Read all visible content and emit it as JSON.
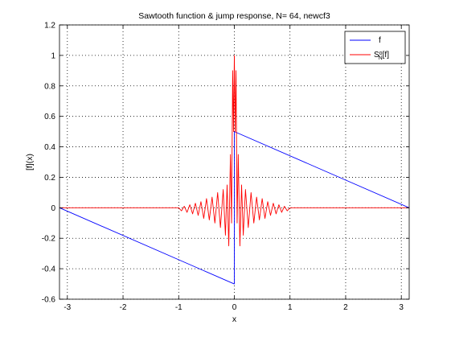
{
  "chart_data": {
    "type": "line",
    "title": "Sawtooth function & jump response, N= 64, newcf3",
    "xlabel": "x",
    "ylabel": "[f](x)",
    "xlim": [
      -3.14159,
      3.14159
    ],
    "ylim": [
      -0.6,
      1.2
    ],
    "xticks": [
      -3,
      -2,
      -1,
      0,
      1,
      2,
      3
    ],
    "yticks": [
      -0.6,
      -0.4,
      -0.2,
      0,
      0.2,
      0.4,
      0.6,
      0.8,
      1,
      1.2
    ],
    "xtick_labels": [
      "-3",
      "-2",
      "-1",
      "0",
      "1",
      "2",
      "3"
    ],
    "ytick_labels": [
      "-0.6",
      "-0.4",
      "-0.2",
      "0",
      "0.2",
      "0.4",
      "0.6",
      "0.8",
      "1",
      "1.2"
    ],
    "grid": true,
    "legend_position": "top-right",
    "series": [
      {
        "name": "f",
        "color": "#0000ff",
        "x": [
          -3.14159,
          -0.001,
          0.001,
          3.14159
        ],
        "y": [
          0,
          -0.5,
          0.5,
          0
        ]
      },
      {
        "name": "S",
        "legend_sup": "o",
        "legend_sub": "N",
        "legend_suffix": "[f]",
        "color": "#ff0000",
        "x": [
          -3.14159,
          -1.0,
          -0.95,
          -0.9,
          -0.85,
          -0.8,
          -0.75,
          -0.7,
          -0.65,
          -0.6,
          -0.55,
          -0.5,
          -0.45,
          -0.4,
          -0.35,
          -0.3,
          -0.25,
          -0.2,
          -0.16,
          -0.13,
          -0.1,
          -0.07,
          -0.05,
          -0.03,
          -0.015,
          0,
          0.015,
          0.03,
          0.05,
          0.07,
          0.1,
          0.13,
          0.16,
          0.2,
          0.25,
          0.3,
          0.35,
          0.4,
          0.45,
          0.5,
          0.55,
          0.6,
          0.65,
          0.7,
          0.75,
          0.8,
          0.85,
          0.9,
          0.95,
          1.0,
          3.14159
        ],
        "y": [
          0,
          0,
          -0.02,
          0.01,
          -0.03,
          0.02,
          -0.04,
          0.03,
          -0.05,
          0.04,
          -0.07,
          0.06,
          -0.08,
          0.07,
          -0.1,
          0.1,
          -0.13,
          0.12,
          -0.18,
          0.15,
          -0.25,
          0.35,
          -0.1,
          0.9,
          0.5,
          1.0,
          0.5,
          0.9,
          -0.1,
          0.35,
          -0.25,
          0.15,
          -0.18,
          0.12,
          -0.13,
          0.1,
          -0.1,
          0.07,
          -0.08,
          0.06,
          -0.07,
          0.04,
          -0.05,
          0.03,
          -0.04,
          0.02,
          -0.03,
          0.01,
          -0.02,
          0,
          0
        ]
      }
    ]
  }
}
